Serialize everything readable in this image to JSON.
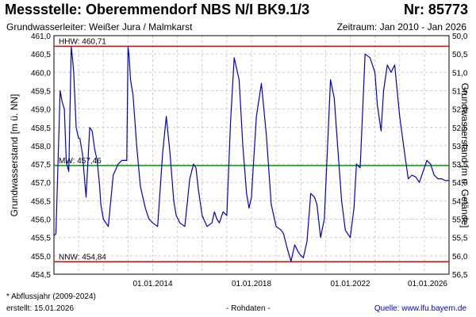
{
  "header": {
    "title": "Messstelle: Oberemmendorf NBS N/I BK9.1/3",
    "number": "Nr: 85773",
    "aquifer": "Grundwasserleiter:   Weißer Jura / Malmkarst",
    "period": "Zeitraum: Jan 2010 - Jan 2026"
  },
  "footer": {
    "footnote": "* Abflussjahr (2009-2024)",
    "created": "erstellt:  15.01.2026",
    "raw": "- Rohdaten -",
    "source": "Quelle:  www.lfu.bayern.de"
  },
  "colors": {
    "series": "#0000cc",
    "hhw": "#ee0000",
    "nnw": "#ee0000",
    "mw": "#009900",
    "grid": "#cccccc"
  },
  "chart_data": {
    "type": "line",
    "ylabel": "Grundwasserstand [m ü. NN]",
    "y2label": "Grundwasserstand [m u. Gelände]",
    "ylim": [
      454.5,
      461.0
    ],
    "y2lim": [
      56.5,
      50.0
    ],
    "xlim": [
      "2010-01",
      "2026-01"
    ],
    "grid": true,
    "y_ticks": [
      "461,0",
      "460,5",
      "460,0",
      "459,5",
      "459,0",
      "458,5",
      "458,0",
      "457,5",
      "457,0",
      "456,5",
      "456,0",
      "455,5",
      "455,0",
      "454,5"
    ],
    "y_tick_values": [
      461.0,
      460.5,
      460.0,
      459.5,
      459.0,
      458.5,
      458.0,
      457.5,
      457.0,
      456.5,
      456.0,
      455.5,
      455.0,
      454.5
    ],
    "y2_ticks": [
      "50,0",
      "50,5",
      "51,0",
      "51,5",
      "52,0",
      "52,5",
      "53,0",
      "53,5",
      "54,0",
      "54,5",
      "55,0",
      "55,5",
      "56,0",
      "56,5"
    ],
    "x_ticks": [
      "01.01.2014",
      "01.01.2018",
      "01.01.2022",
      "01.01.2026"
    ],
    "x_tick_values": [
      2014.0,
      2018.0,
      2022.0,
      2026.0
    ],
    "reference_lines": [
      {
        "key": "hhw",
        "label": "HHW: 460,71",
        "value": 460.71
      },
      {
        "key": "mw",
        "label": "MW: 457,46",
        "value": 457.46
      },
      {
        "key": "nnw",
        "label": "NNW: 454,84",
        "value": 454.84
      }
    ],
    "series": [
      {
        "x": [
          2010.0,
          2010.08,
          2010.25,
          2010.33,
          2010.42,
          2010.5,
          2010.6,
          2010.7,
          2010.75,
          2010.8,
          2010.9,
          2011.0,
          2011.05,
          2011.15,
          2011.3,
          2011.45,
          2011.55,
          2011.65,
          2011.75,
          2011.85,
          2011.9,
          2012.0,
          2012.2,
          2012.4,
          2012.6,
          2012.75,
          2012.85,
          2012.95,
          2013.0,
          2013.05,
          2013.1,
          2013.2,
          2013.35,
          2013.5,
          2013.7,
          2013.85,
          2014.0,
          2014.2,
          2014.4,
          2014.55,
          2014.7,
          2014.85,
          2014.95,
          2015.1,
          2015.3,
          2015.5,
          2015.65,
          2015.75,
          2015.85,
          2016.0,
          2016.2,
          2016.4,
          2016.5,
          2016.6,
          2016.7,
          2016.85,
          2017.0,
          2017.15,
          2017.3,
          2017.5,
          2017.65,
          2017.8,
          2017.9,
          2018.0,
          2018.05,
          2018.2,
          2018.4,
          2018.6,
          2018.8,
          2019.0,
          2019.2,
          2019.3,
          2019.45,
          2019.6,
          2019.75,
          2019.9,
          2020.0,
          2020.1,
          2020.25,
          2020.4,
          2020.55,
          2020.65,
          2020.8,
          2020.95,
          2021.05,
          2021.2,
          2021.35,
          2021.5,
          2021.65,
          2021.8,
          2022.0,
          2022.15,
          2022.25,
          2022.4,
          2022.6,
          2022.8,
          2023.0,
          2023.1,
          2023.25,
          2023.35,
          2023.5,
          2023.65,
          2023.8,
          2024.0,
          2024.2,
          2024.35,
          2024.5,
          2024.65,
          2024.8,
          2025.0,
          2025.1,
          2025.25,
          2025.4,
          2025.55,
          2025.7,
          2025.85,
          2026.0
        ],
        "y": [
          455.55,
          455.6,
          459.5,
          459.2,
          459.0,
          457.55,
          457.3,
          460.7,
          460.4,
          460.0,
          458.5,
          458.2,
          458.2,
          457.8,
          456.6,
          458.5,
          458.4,
          457.9,
          457.6,
          456.9,
          456.4,
          456.0,
          455.8,
          457.2,
          457.5,
          457.6,
          457.6,
          457.6,
          460.7,
          460.4,
          459.8,
          459.4,
          458.0,
          456.9,
          456.3,
          456.0,
          455.9,
          455.8,
          457.8,
          458.8,
          457.8,
          456.5,
          456.1,
          455.9,
          455.8,
          457.1,
          457.5,
          457.4,
          456.8,
          456.1,
          455.8,
          455.9,
          456.2,
          456.0,
          455.9,
          456.2,
          456.1,
          458.6,
          460.4,
          459.8,
          458.0,
          456.7,
          456.3,
          456.6,
          457.2,
          458.8,
          459.7,
          458.3,
          456.4,
          455.8,
          455.7,
          455.6,
          455.2,
          454.85,
          455.3,
          455.1,
          455.0,
          454.95,
          455.4,
          456.7,
          456.6,
          456.4,
          455.5,
          456.0,
          457.5,
          459.8,
          459.3,
          457.9,
          456.5,
          455.7,
          455.5,
          456.3,
          457.5,
          457.4,
          460.5,
          460.4,
          460.0,
          459.1,
          458.4,
          459.5,
          460.2,
          460.0,
          460.2,
          458.8,
          457.8,
          457.1,
          457.2,
          457.15,
          457.0,
          457.4,
          457.6,
          457.5,
          457.2,
          457.1,
          457.1,
          457.05,
          457.05
        ]
      }
    ]
  }
}
